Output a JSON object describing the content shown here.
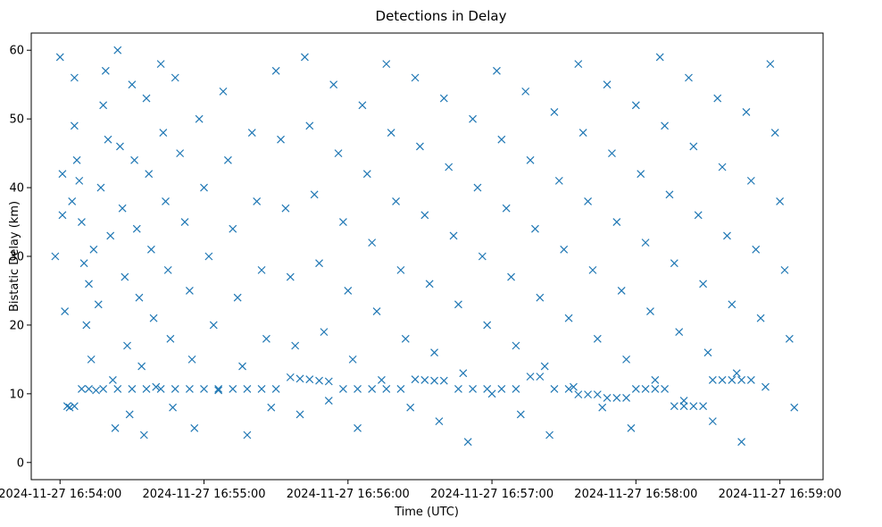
{
  "chart_data": {
    "type": "scatter",
    "title": "Detections in Delay",
    "xlabel": "Time (UTC)",
    "ylabel": "Bistatic Delay (km)",
    "marker": "x",
    "color": "#1f77b4",
    "x_unit": "seconds after 2024-11-27 16:54:00",
    "xlim": [
      -12,
      318
    ],
    "ylim": [
      -2.5,
      62.5
    ],
    "x_ticks": [
      {
        "value": 0,
        "label": "2024-11-27 16:54:00"
      },
      {
        "value": 60,
        "label": "2024-11-27 16:55:00"
      },
      {
        "value": 120,
        "label": "2024-11-27 16:56:00"
      },
      {
        "value": 180,
        "label": "2024-11-27 16:57:00"
      },
      {
        "value": 240,
        "label": "2024-11-27 16:58:00"
      },
      {
        "value": 300,
        "label": "2024-11-27 16:59:00"
      }
    ],
    "y_ticks": [
      {
        "value": 0,
        "label": "0"
      },
      {
        "value": 10,
        "label": "10"
      },
      {
        "value": 20,
        "label": "20"
      },
      {
        "value": 30,
        "label": "30"
      },
      {
        "value": 40,
        "label": "40"
      },
      {
        "value": 50,
        "label": "50"
      },
      {
        "value": 60,
        "label": "60"
      }
    ],
    "series": [
      {
        "name": "detections",
        "points": [
          [
            -2,
            30
          ],
          [
            0,
            59
          ],
          [
            1,
            42
          ],
          [
            1,
            36
          ],
          [
            2,
            22
          ],
          [
            4,
            8
          ],
          [
            5,
            38
          ],
          [
            6,
            56
          ],
          [
            6,
            49
          ],
          [
            7,
            44
          ],
          [
            8,
            41
          ],
          [
            9,
            35
          ],
          [
            10,
            29
          ],
          [
            11,
            20
          ],
          [
            12,
            26
          ],
          [
            13,
            15
          ],
          [
            14,
            31
          ],
          [
            15,
            10.5
          ],
          [
            16,
            23
          ],
          [
            17,
            40
          ],
          [
            18,
            52
          ],
          [
            19,
            57
          ],
          [
            20,
            47
          ],
          [
            21,
            33
          ],
          [
            22,
            12
          ],
          [
            23,
            5
          ],
          [
            24,
            60
          ],
          [
            25,
            46
          ],
          [
            26,
            37
          ],
          [
            27,
            27
          ],
          [
            28,
            17
          ],
          [
            29,
            7
          ],
          [
            30,
            55
          ],
          [
            31,
            44
          ],
          [
            32,
            34
          ],
          [
            33,
            24
          ],
          [
            34,
            14
          ],
          [
            35,
            4
          ],
          [
            36,
            53
          ],
          [
            37,
            42
          ],
          [
            38,
            31
          ],
          [
            39,
            21
          ],
          [
            40,
            11
          ],
          [
            42,
            58
          ],
          [
            43,
            48
          ],
          [
            44,
            38
          ],
          [
            45,
            28
          ],
          [
            46,
            18
          ],
          [
            47,
            8
          ],
          [
            48,
            56
          ],
          [
            50,
            45
          ],
          [
            52,
            35
          ],
          [
            54,
            25
          ],
          [
            55,
            15
          ],
          [
            56,
            5
          ],
          [
            58,
            50
          ],
          [
            60,
            40
          ],
          [
            62,
            30
          ],
          [
            64,
            20
          ],
          [
            66,
            10.5
          ],
          [
            68,
            54
          ],
          [
            70,
            44
          ],
          [
            72,
            34
          ],
          [
            74,
            24
          ],
          [
            76,
            14
          ],
          [
            78,
            4
          ],
          [
            80,
            48
          ],
          [
            82,
            38
          ],
          [
            84,
            28
          ],
          [
            86,
            18
          ],
          [
            88,
            8
          ],
          [
            90,
            57
          ],
          [
            92,
            47
          ],
          [
            94,
            37
          ],
          [
            96,
            27
          ],
          [
            98,
            17
          ],
          [
            100,
            7
          ],
          [
            102,
            59
          ],
          [
            104,
            49
          ],
          [
            106,
            39
          ],
          [
            108,
            29
          ],
          [
            110,
            19
          ],
          [
            112,
            9
          ],
          [
            114,
            55
          ],
          [
            116,
            45
          ],
          [
            118,
            35
          ],
          [
            120,
            25
          ],
          [
            122,
            15
          ],
          [
            124,
            5
          ],
          [
            126,
            52
          ],
          [
            128,
            42
          ],
          [
            130,
            32
          ],
          [
            132,
            22
          ],
          [
            134,
            12
          ],
          [
            136,
            58
          ],
          [
            138,
            48
          ],
          [
            140,
            38
          ],
          [
            142,
            28
          ],
          [
            144,
            18
          ],
          [
            146,
            8
          ],
          [
            148,
            56
          ],
          [
            150,
            46
          ],
          [
            152,
            36
          ],
          [
            154,
            26
          ],
          [
            156,
            16
          ],
          [
            158,
            6
          ],
          [
            160,
            53
          ],
          [
            162,
            43
          ],
          [
            164,
            33
          ],
          [
            166,
            23
          ],
          [
            168,
            13
          ],
          [
            170,
            3
          ],
          [
            172,
            50
          ],
          [
            174,
            40
          ],
          [
            176,
            30
          ],
          [
            178,
            20
          ],
          [
            180,
            10
          ],
          [
            182,
            57
          ],
          [
            184,
            47
          ],
          [
            186,
            37
          ],
          [
            188,
            27
          ],
          [
            190,
            17
          ],
          [
            192,
            7
          ],
          [
            194,
            54
          ],
          [
            196,
            44
          ],
          [
            198,
            34
          ],
          [
            200,
            24
          ],
          [
            202,
            14
          ],
          [
            204,
            4
          ],
          [
            206,
            51
          ],
          [
            208,
            41
          ],
          [
            210,
            31
          ],
          [
            212,
            21
          ],
          [
            214,
            11
          ],
          [
            216,
            58
          ],
          [
            218,
            48
          ],
          [
            220,
            38
          ],
          [
            222,
            28
          ],
          [
            224,
            18
          ],
          [
            226,
            8
          ],
          [
            228,
            55
          ],
          [
            230,
            45
          ],
          [
            232,
            35
          ],
          [
            234,
            25
          ],
          [
            236,
            15
          ],
          [
            238,
            5
          ],
          [
            240,
            52
          ],
          [
            242,
            42
          ],
          [
            244,
            32
          ],
          [
            246,
            22
          ],
          [
            248,
            12
          ],
          [
            250,
            59
          ],
          [
            252,
            49
          ],
          [
            254,
            39
          ],
          [
            256,
            29
          ],
          [
            258,
            19
          ],
          [
            260,
            9
          ],
          [
            262,
            56
          ],
          [
            264,
            46
          ],
          [
            266,
            36
          ],
          [
            268,
            26
          ],
          [
            270,
            16
          ],
          [
            272,
            6
          ],
          [
            274,
            53
          ],
          [
            276,
            43
          ],
          [
            278,
            33
          ],
          [
            280,
            23
          ],
          [
            282,
            13
          ],
          [
            284,
            3
          ],
          [
            286,
            51
          ],
          [
            288,
            41
          ],
          [
            290,
            31
          ],
          [
            292,
            21
          ],
          [
            294,
            11
          ],
          [
            296,
            58
          ],
          [
            298,
            48
          ],
          [
            300,
            38
          ],
          [
            302,
            28
          ],
          [
            304,
            18
          ],
          [
            306,
            8
          ],
          [
            3,
            8.2
          ],
          [
            6,
            8.2
          ],
          [
            9,
            10.7
          ],
          [
            12,
            10.7
          ],
          [
            18,
            10.7
          ],
          [
            24,
            10.7
          ],
          [
            30,
            10.7
          ],
          [
            36,
            10.7
          ],
          [
            42,
            10.7
          ],
          [
            48,
            10.7
          ],
          [
            54,
            10.7
          ],
          [
            60,
            10.7
          ],
          [
            66,
            10.7
          ],
          [
            72,
            10.7
          ],
          [
            78,
            10.7
          ],
          [
            84,
            10.7
          ],
          [
            90,
            10.7
          ],
          [
            96,
            12.4
          ],
          [
            100,
            12.2
          ],
          [
            104,
            12.1
          ],
          [
            108,
            11.9
          ],
          [
            112,
            11.8
          ],
          [
            118,
            10.7
          ],
          [
            124,
            10.7
          ],
          [
            130,
            10.7
          ],
          [
            136,
            10.7
          ],
          [
            142,
            10.7
          ],
          [
            148,
            12.1
          ],
          [
            152,
            12.0
          ],
          [
            156,
            11.9
          ],
          [
            160,
            11.9
          ],
          [
            166,
            10.7
          ],
          [
            172,
            10.7
          ],
          [
            178,
            10.7
          ],
          [
            184,
            10.7
          ],
          [
            190,
            10.7
          ],
          [
            196,
            12.5
          ],
          [
            200,
            12.5
          ],
          [
            206,
            10.7
          ],
          [
            212,
            10.7
          ],
          [
            216,
            9.9
          ],
          [
            220,
            9.9
          ],
          [
            224,
            9.9
          ],
          [
            228,
            9.4
          ],
          [
            232,
            9.4
          ],
          [
            236,
            9.4
          ],
          [
            240,
            10.7
          ],
          [
            244,
            10.7
          ],
          [
            248,
            10.7
          ],
          [
            252,
            10.7
          ],
          [
            256,
            8.2
          ],
          [
            260,
            8.2
          ],
          [
            264,
            8.2
          ],
          [
            268,
            8.2
          ],
          [
            272,
            12.0
          ],
          [
            276,
            12.0
          ],
          [
            280,
            12.0
          ],
          [
            284,
            12.0
          ],
          [
            288,
            12.0
          ]
        ]
      }
    ]
  }
}
